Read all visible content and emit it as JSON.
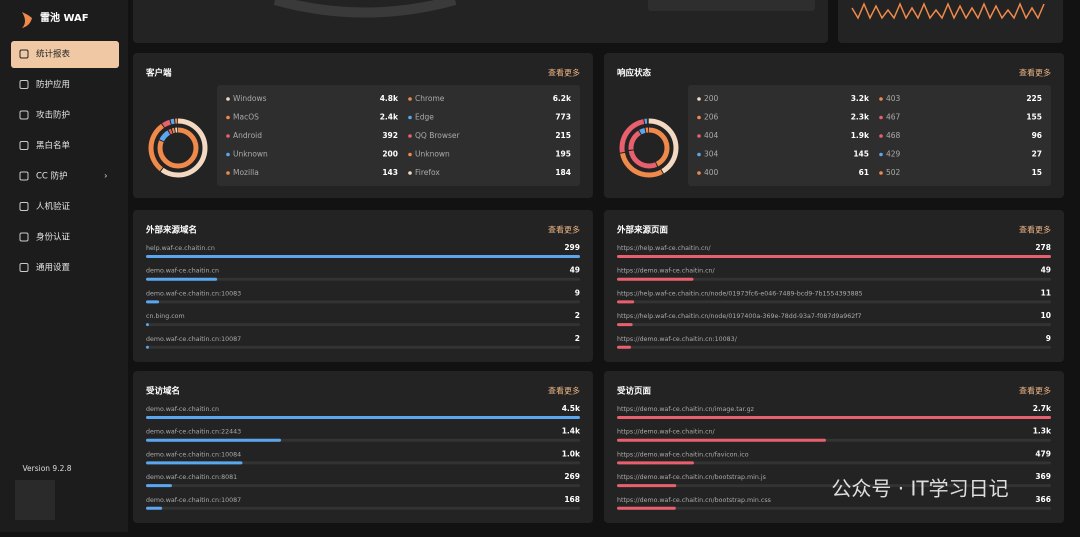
{
  "sidebar": {
    "logo": "雷池 WAF",
    "menu": [
      "统计报表",
      "防护应用",
      "攻击防护",
      "黑白名单",
      "CC 防护",
      "人机验证",
      "身份认证",
      "通用设置"
    ],
    "version": "Version 9.2.8"
  },
  "watermark": "公众号 · IT学习日记",
  "clients": {
    "title": "客户端",
    "more": "查看更多",
    "os": [
      {
        "name": "Windows",
        "count": {
          "value": 4800,
          "label": "4.8k"
        },
        "color": "#f3d9c2"
      },
      {
        "name": "MacOS",
        "count": {
          "value": 2400,
          "label": "2.4k"
        },
        "color": "#f08a4b"
      },
      {
        "name": "Android",
        "count": 392,
        "color": "#e8606e"
      },
      {
        "name": "Unknown",
        "count": 200,
        "color": "#5aa7f0"
      },
      {
        "name": "Mozilla",
        "count": 143,
        "color": "#f08a4b"
      }
    ],
    "browsers": [
      {
        "name": "Chrome",
        "count": {
          "value": 6200,
          "label": "6.2k"
        },
        "color": "#f08a4b"
      },
      {
        "name": "Edge",
        "count": 773,
        "color": "#5aa7f0"
      },
      {
        "name": "QQ Browser",
        "count": 215,
        "color": "#e8606e"
      },
      {
        "name": "Unknown",
        "count": 195,
        "color": "#f08a4b"
      },
      {
        "name": "Firefox",
        "count": 184,
        "color": "#f3d9c2"
      }
    ]
  },
  "status": {
    "title": "响应状态",
    "more": "查看更多",
    "left": [
      {
        "name": "200",
        "count": {
          "value": 3200,
          "label": "3.2k"
        },
        "color": "#f3d9c2"
      },
      {
        "name": "206",
        "count": {
          "value": 2300,
          "label": "2.3k"
        },
        "color": "#f08a4b"
      },
      {
        "name": "404",
        "count": {
          "value": 1900,
          "label": "1.9k"
        },
        "color": "#e8606e"
      },
      {
        "name": "304",
        "count": 145,
        "color": "#5aa7f0"
      },
      {
        "name": "400",
        "count": 61,
        "color": "#f08a4b"
      }
    ],
    "right": [
      {
        "name": "403",
        "count": 225,
        "color": "#f08a4b"
      },
      {
        "name": "467",
        "count": 155,
        "color": "#e8606e"
      },
      {
        "name": "468",
        "count": 96,
        "color": "#e8606e"
      },
      {
        "name": "429",
        "count": 27,
        "color": "#5aa7f0"
      },
      {
        "name": "502",
        "count": 15,
        "color": "#f08a4b"
      }
    ]
  },
  "referer_domains": {
    "title": "外部来源域名",
    "more": "查看更多",
    "color": "#5aa7f0",
    "rows": [
      {
        "name": "help.waf-ce.chaitin.cn",
        "count": 299
      },
      {
        "name": "demo.waf-ce.chaitin.cn",
        "count": 49
      },
      {
        "name": "demo.waf-ce.chaitin.cn:10083",
        "count": 9
      },
      {
        "name": "cn.bing.com",
        "count": 2
      },
      {
        "name": "demo.waf-ce.chaitin.cn:10087",
        "count": 2
      }
    ]
  },
  "referer_pages": {
    "title": "外部来源页面",
    "more": "查看更多",
    "color": "#e8606e",
    "rows": [
      {
        "name": "https://help.waf-ce.chaitin.cn/",
        "count": 278
      },
      {
        "name": "https://demo.waf-ce.chaitin.cn/",
        "count": 49
      },
      {
        "name": "https://help.waf-ce.chaitin.cn/node/01973fc6-e046-7489-bcd9-7b1554393885",
        "count": 11
      },
      {
        "name": "https://help.waf-ce.chaitin.cn/node/0197400a-369e-78dd-93a7-f087d9a962f7",
        "count": 10
      },
      {
        "name": "https://demo.waf-ce.chaitin.cn:10083/",
        "count": 9
      }
    ]
  },
  "visited_domains": {
    "title": "受访域名",
    "more": "查看更多",
    "color": "#5aa7f0",
    "rows": [
      {
        "name": "demo.waf-ce.chaitin.cn",
        "count": {
          "value": 4500,
          "label": "4.5k"
        }
      },
      {
        "name": "demo.waf-ce.chaitin.cn:22443",
        "count": {
          "value": 1400,
          "label": "1.4k"
        }
      },
      {
        "name": "demo.waf-ce.chaitin.cn:10084",
        "count": {
          "value": 1000,
          "label": "1.0k"
        }
      },
      {
        "name": "demo.waf-ce.chaitin.cn:8081",
        "count": 269
      },
      {
        "name": "demo.waf-ce.chaitin.cn:10087",
        "count": 168
      }
    ]
  },
  "visited_pages": {
    "title": "受访页面",
    "more": "查看更多",
    "color": "#e8606e",
    "rows": [
      {
        "name": "https://demo.waf-ce.chaitin.cn/image.tar.gz",
        "count": {
          "value": 2700,
          "label": "2.7k"
        }
      },
      {
        "name": "https://demo.waf-ce.chaitin.cn/",
        "count": {
          "value": 1300,
          "label": "1.3k"
        }
      },
      {
        "name": "https://demo.waf-ce.chaitin.cn/favicon.ico",
        "count": 479
      },
      {
        "name": "https://demo.waf-ce.chaitin.cn/bootstrap.min.js",
        "count": 369
      },
      {
        "name": "https://demo.waf-ce.chaitin.cn/bootstrap.min.css",
        "count": 366
      }
    ]
  }
}
